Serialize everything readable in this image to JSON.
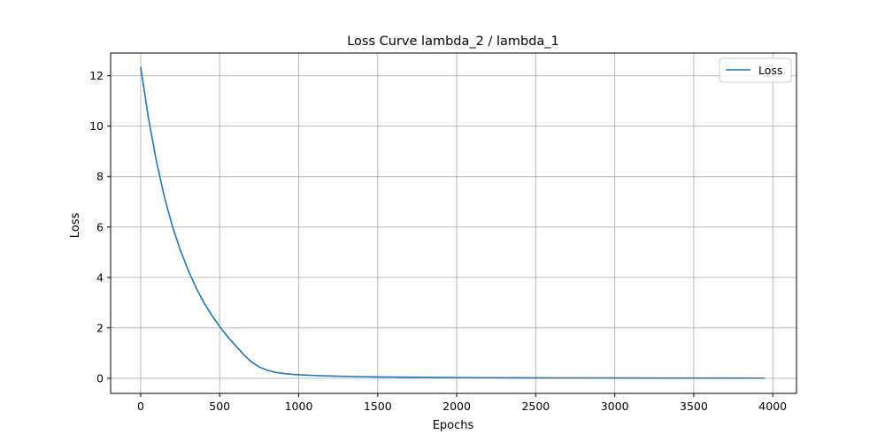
{
  "chart_data": {
    "type": "line",
    "title": "Loss Curve lambda_2 / lambda_1",
    "xlabel": "Epochs",
    "ylabel": "Loss",
    "xlim": [
      -190,
      4150
    ],
    "ylim": [
      -0.6,
      12.9
    ],
    "xticks": [
      0,
      500,
      1000,
      1500,
      2000,
      2500,
      3000,
      3500,
      4000
    ],
    "yticks": [
      0,
      2,
      4,
      6,
      8,
      10,
      12
    ],
    "grid": true,
    "legend": {
      "position": "top-right",
      "entries": [
        "Loss"
      ]
    },
    "series": [
      {
        "name": "Loss",
        "color": "#1f77b4",
        "x": [
          0,
          50,
          100,
          150,
          200,
          250,
          300,
          350,
          400,
          450,
          500,
          550,
          600,
          650,
          700,
          750,
          800,
          850,
          900,
          950,
          1000,
          1100,
          1200,
          1300,
          1400,
          1500,
          1600,
          1800,
          2000,
          2200,
          2500,
          3000,
          3500,
          3950
        ],
        "y": [
          12.35,
          10.3,
          8.6,
          7.2,
          6.05,
          5.1,
          4.3,
          3.6,
          3.0,
          2.5,
          2.05,
          1.65,
          1.3,
          0.95,
          0.65,
          0.45,
          0.32,
          0.24,
          0.19,
          0.16,
          0.14,
          0.11,
          0.09,
          0.075,
          0.062,
          0.052,
          0.045,
          0.035,
          0.027,
          0.02,
          0.015,
          0.01,
          0.007,
          0.005
        ]
      }
    ]
  }
}
